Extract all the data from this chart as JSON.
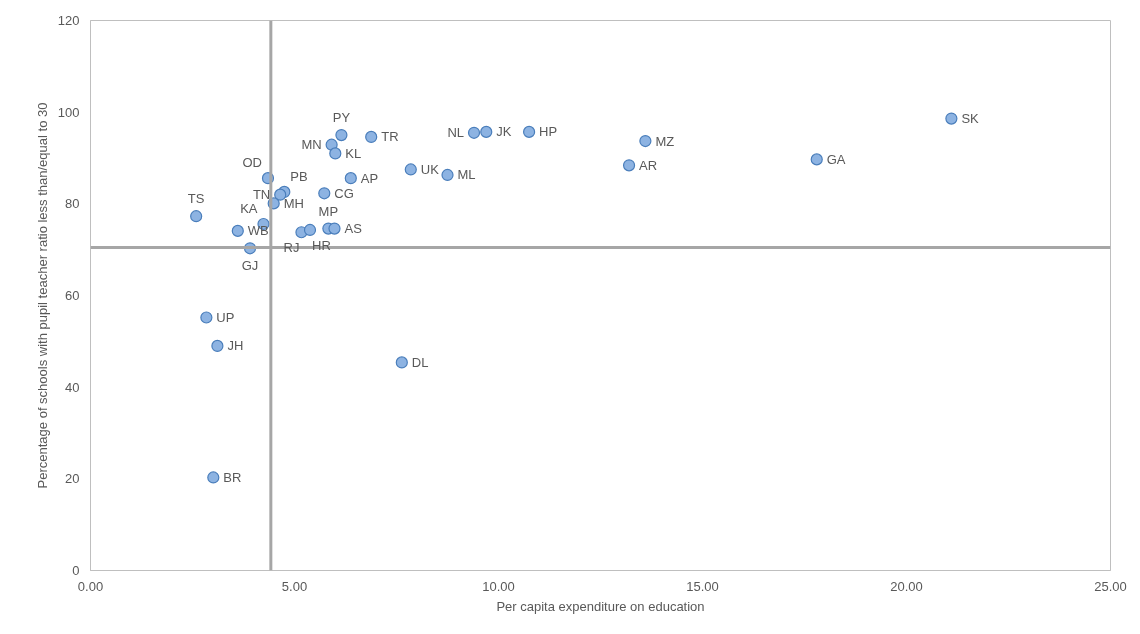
{
  "chart_data": {
    "type": "scatter",
    "xlabel": "Per capita expenditure on education",
    "ylabel": "Percentage of schools with pupil teacher ratio less than/equal to 30",
    "xlim": [
      0,
      25
    ],
    "ylim": [
      0,
      120
    ],
    "xticks": [
      {
        "value": 0,
        "label": "0.00"
      },
      {
        "value": 5,
        "label": "5.00"
      },
      {
        "value": 10,
        "label": "10.00"
      },
      {
        "value": 15,
        "label": "15.00"
      },
      {
        "value": 20,
        "label": "20.00"
      },
      {
        "value": 25,
        "label": "25.00"
      }
    ],
    "yticks": [
      0,
      20,
      40,
      60,
      80,
      100,
      120
    ],
    "marker": "circle",
    "series": [
      {
        "color": "#8db3e2",
        "x": [
          21.1,
          17.8,
          13.6,
          13.2,
          10.75,
          9.7,
          9.4,
          8.75,
          7.85,
          6.88,
          6.15,
          5.91,
          6.0,
          4.35,
          6.38,
          4.75,
          4.65,
          5.73,
          4.49,
          2.59,
          4.24,
          3.61,
          5.17,
          5.38,
          5.83,
          5.98,
          3.91,
          2.84,
          3.11,
          7.63,
          3.01
        ],
        "values": [
          98.6,
          89.7,
          93.7,
          88.4,
          95.7,
          95.7,
          95.5,
          86.3,
          87.5,
          94.6,
          95.0,
          92.9,
          91.0,
          85.6,
          85.6,
          82.6,
          82.0,
          82.3,
          80.1,
          77.3,
          75.6,
          74.1,
          73.8,
          74.3,
          74.6,
          74.6,
          70.3,
          55.2,
          49.0,
          45.4,
          20.3
        ]
      }
    ],
    "annotations": [
      {
        "text": "SK",
        "x": 21.1,
        "y": 98.6
      },
      {
        "text": "GA",
        "x": 17.8,
        "y": 89.7
      },
      {
        "text": "MZ",
        "x": 13.6,
        "y": 93.7
      },
      {
        "text": "AR",
        "x": 13.2,
        "y": 88.4
      },
      {
        "text": "HP",
        "x": 10.75,
        "y": 95.7
      },
      {
        "text": "JK",
        "x": 9.7,
        "y": 95.7
      },
      {
        "text": "NL",
        "x": 9.4,
        "y": 95.5
      },
      {
        "text": "ML",
        "x": 8.75,
        "y": 86.3
      },
      {
        "text": "UK",
        "x": 7.85,
        "y": 87.5
      },
      {
        "text": "TR",
        "x": 6.88,
        "y": 94.6
      },
      {
        "text": "PY",
        "x": 6.15,
        "y": 95.0
      },
      {
        "text": "MN",
        "x": 5.91,
        "y": 92.9
      },
      {
        "text": "KL",
        "x": 6.0,
        "y": 91.0
      },
      {
        "text": "OD",
        "x": 4.35,
        "y": 85.6
      },
      {
        "text": "AP",
        "x": 6.38,
        "y": 85.6
      },
      {
        "text": "PB",
        "x": 4.75,
        "y": 82.6
      },
      {
        "text": "TN",
        "x": 4.65,
        "y": 82.0
      },
      {
        "text": "CG",
        "x": 5.73,
        "y": 82.3
      },
      {
        "text": "MH",
        "x": 4.49,
        "y": 80.1
      },
      {
        "text": "TS",
        "x": 2.59,
        "y": 77.3
      },
      {
        "text": "KA",
        "x": 4.24,
        "y": 75.6
      },
      {
        "text": "WB",
        "x": 3.61,
        "y": 74.1
      },
      {
        "text": "RJ",
        "x": 5.17,
        "y": 73.8
      },
      {
        "text": "HR",
        "x": 5.38,
        "y": 74.3
      },
      {
        "text": "MP",
        "x": 5.83,
        "y": 74.6
      },
      {
        "text": "AS",
        "x": 5.98,
        "y": 74.6
      },
      {
        "text": "GJ",
        "x": 3.91,
        "y": 70.3
      },
      {
        "text": "UP",
        "x": 2.84,
        "y": 55.2
      },
      {
        "text": "JH",
        "x": 3.11,
        "y": 49.0
      },
      {
        "text": "DL",
        "x": 7.63,
        "y": 45.4
      },
      {
        "text": "BR",
        "x": 3.01,
        "y": 20.3
      }
    ],
    "ref_lines": [
      {
        "axis": "x",
        "value": 4.42,
        "label": null,
        "color": "#a6a6a6"
      },
      {
        "axis": "y",
        "value": 70.5,
        "label": null,
        "color": "#a6a6a6"
      }
    ]
  }
}
